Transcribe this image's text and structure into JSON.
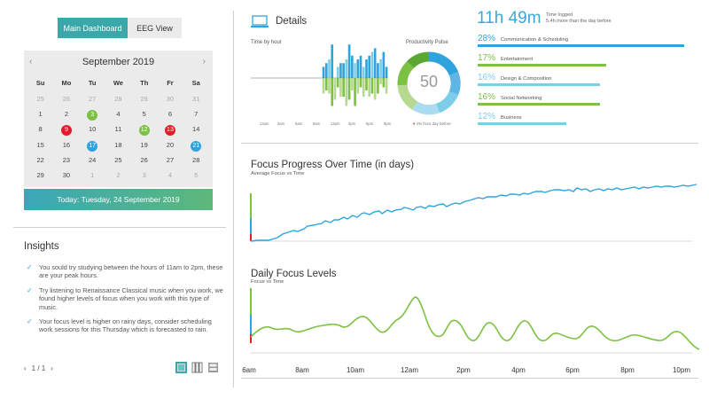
{
  "tabs": {
    "main": "Main Dashboard",
    "eeg": "EEG View"
  },
  "calendar": {
    "month_label": "September 2019",
    "prev": "‹",
    "next": "›",
    "weekdays": [
      "Su",
      "Mo",
      "Tu",
      "We",
      "Th",
      "Fr",
      "Sa"
    ],
    "weeks": [
      [
        {
          "d": "25",
          "m": true
        },
        {
          "d": "26",
          "m": true
        },
        {
          "d": "27",
          "m": true
        },
        {
          "d": "28",
          "m": true
        },
        {
          "d": "29",
          "m": true
        },
        {
          "d": "30",
          "m": true
        },
        {
          "d": "31",
          "m": true
        }
      ],
      [
        {
          "d": "1"
        },
        {
          "d": "2"
        },
        {
          "d": "3",
          "c": "#7dc142"
        },
        {
          "d": "4"
        },
        {
          "d": "5"
        },
        {
          "d": "6"
        },
        {
          "d": "7"
        }
      ],
      [
        {
          "d": "8"
        },
        {
          "d": "9",
          "c": "#e01e2a"
        },
        {
          "d": "10"
        },
        {
          "d": "11"
        },
        {
          "d": "12",
          "c": "#7dc142"
        },
        {
          "d": "13",
          "c": "#e01e2a"
        },
        {
          "d": "14"
        }
      ],
      [
        {
          "d": "15"
        },
        {
          "d": "16"
        },
        {
          "d": "17",
          "c": "#2fa3de"
        },
        {
          "d": "18"
        },
        {
          "d": "19"
        },
        {
          "d": "20"
        },
        {
          "d": "21",
          "c": "#2fa3de"
        }
      ],
      [
        {
          "d": "22"
        },
        {
          "d": "23"
        },
        {
          "d": "24"
        },
        {
          "d": "25"
        },
        {
          "d": "26"
        },
        {
          "d": "27"
        },
        {
          "d": "28"
        }
      ],
      [
        {
          "d": "29"
        },
        {
          "d": "30"
        },
        {
          "d": "1",
          "m": true
        },
        {
          "d": "2",
          "m": true
        },
        {
          "d": "3",
          "m": true
        },
        {
          "d": "4",
          "m": true
        },
        {
          "d": "5",
          "m": true
        }
      ]
    ],
    "today_label": "Today: Tuesday, 24 September 2019"
  },
  "insights": {
    "title": "Insights",
    "items": [
      "You sould try studying between the hours of 11am to 2pm, these are your peak hours.",
      "Try listening to Renaissance Classical music when you work, we found higher levels of focus when you work with this type of music.",
      "Your focus level is higher on rainy days, consider scheduling work sessions for this Thursday which is forecasted to rain."
    ],
    "pager": "1 / 1",
    "check_icon": "check-icon"
  },
  "details": {
    "title": "Details",
    "time_by_hour_label": "Time by hour",
    "hour_ticks": [
      "12am",
      "3am",
      "6am",
      "9am",
      "12pm",
      "3pm",
      "6pm",
      "9pm"
    ],
    "hour_bars_up": [
      0,
      0,
      0,
      0,
      0,
      0,
      0,
      0,
      0,
      0,
      0,
      0,
      0,
      0,
      0,
      0,
      0,
      0,
      0,
      0,
      0,
      0,
      0,
      0,
      0,
      3,
      4,
      5,
      9,
      0,
      3,
      4,
      4,
      5,
      9,
      6,
      4,
      5,
      6,
      3,
      5,
      6,
      7,
      8,
      4,
      5,
      7,
      3
    ],
    "hour_bars_down": [
      0,
      0,
      0,
      0,
      0,
      0,
      0,
      0,
      0,
      0,
      0,
      0,
      0,
      0,
      0,
      0,
      0,
      0,
      0,
      0,
      0,
      0,
      0,
      0,
      0,
      5,
      4,
      5,
      9,
      7,
      3,
      6,
      6,
      9,
      7,
      4,
      9,
      5,
      3,
      6,
      4,
      6,
      5,
      7,
      5,
      2,
      3,
      5
    ],
    "productivity_label": "Productivity Pulse",
    "productivity_value": "50",
    "productivity_note": "4% from day before",
    "time_logged": "11h 49m",
    "time_logged_label": "Time logged",
    "time_logged_note": "5.4h more than the day before",
    "categories": [
      {
        "pct": "28%",
        "name": "Communication & Scheduling",
        "color": "#2fa3de",
        "width": 0.93
      },
      {
        "pct": "17%",
        "name": "Entertainment",
        "color": "#7dc142",
        "width": 0.58
      },
      {
        "pct": "16%",
        "name": "Design & Composition",
        "color": "#7ccde9",
        "width": 0.55
      },
      {
        "pct": "16%",
        "name": "Social Networking",
        "color": "#7dc142",
        "width": 0.55
      },
      {
        "pct": "12%",
        "name": "Business",
        "color": "#7ccde9",
        "width": 0.4
      }
    ]
  },
  "focus_progress": {
    "title": "Focus Progress Over Time (in days)",
    "subtitle": "Average Focus vs Time"
  },
  "daily_focus": {
    "title": "Daily Focus Levels",
    "subtitle": "Focus vs Time"
  },
  "x_axis": [
    "6am",
    "8am",
    "10am",
    "12am",
    "2pm",
    "4pm",
    "6pm",
    "8pm",
    "10pm"
  ],
  "colors": {
    "blue": "#2fa3de",
    "green": "#7dc142",
    "red": "#e01e2a",
    "teal": "#3aa7a9"
  }
}
